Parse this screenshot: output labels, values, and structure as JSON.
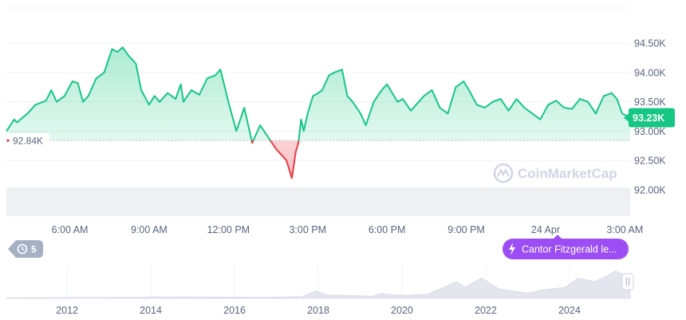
{
  "chart_data": {
    "type": "area",
    "reference_value": 92840,
    "reference_label": "92.84K",
    "current_label": "93.23K",
    "y_ticks": [
      "94.50K",
      "94.00K",
      "93.50K",
      "93.00K",
      "92.50K",
      "92.00K"
    ],
    "y_tick_values": [
      94500,
      94000,
      93500,
      93000,
      92500,
      92000
    ],
    "ylim": [
      91550,
      95100
    ],
    "x_ticks": [
      "6:00 AM",
      "9:00 AM",
      "12:00 PM",
      "3:00 PM",
      "6:00 PM",
      "9:00 PM",
      "24 Apr",
      "3:00 AM"
    ],
    "x_tick_hours": [
      6,
      9,
      12,
      15,
      18,
      21,
      24,
      27
    ],
    "xlim": [
      3.6,
      27.2
    ],
    "series": [
      {
        "x": [
          3.6,
          3.9,
          4.0,
          4.4,
          4.7,
          5.1,
          5.3,
          5.5,
          5.8,
          6.1,
          6.3,
          6.5,
          6.7,
          7.0,
          7.3,
          7.6,
          7.8,
          8.0,
          8.2,
          8.4,
          8.5,
          8.7,
          9.0,
          9.2,
          9.4,
          9.7,
          10.0,
          10.2,
          10.3,
          10.6,
          10.9,
          11.2,
          11.5,
          11.7,
          12.0,
          12.3,
          12.6,
          12.9,
          13.2,
          13.5,
          13.8,
          14.0,
          14.2,
          14.4,
          14.55,
          14.65,
          14.75,
          14.85,
          15.0,
          15.2,
          15.4,
          15.55,
          15.8,
          16.0,
          16.3,
          16.5,
          16.7,
          17.0,
          17.2,
          17.5,
          17.8,
          18.0,
          18.2,
          18.4,
          18.6,
          18.9,
          19.1,
          19.4,
          19.7,
          20.0,
          20.3,
          20.6,
          20.9,
          21.1,
          21.4,
          21.7,
          22.0,
          22.3,
          22.6,
          22.9,
          23.2,
          23.5,
          23.8,
          24.1,
          24.4,
          24.7,
          25.0,
          25.3,
          25.6,
          25.9,
          26.2,
          26.5,
          26.7,
          26.9,
          27.2
        ],
        "y": [
          93000,
          93200,
          93150,
          93300,
          93450,
          93520,
          93700,
          93500,
          93600,
          93850,
          93820,
          93500,
          93600,
          93900,
          94000,
          94400,
          94350,
          94430,
          94300,
          94200,
          94150,
          93700,
          93450,
          93600,
          93500,
          93650,
          93550,
          93800,
          93500,
          93700,
          93620,
          93900,
          93950,
          94050,
          93500,
          93000,
          93400,
          92800,
          93100,
          92900,
          92700,
          92600,
          92500,
          92200,
          92650,
          92800,
          93200,
          93000,
          93300,
          93600,
          93650,
          93700,
          93950,
          94000,
          94050,
          93600,
          93500,
          93300,
          93100,
          93500,
          93700,
          93800,
          93650,
          93500,
          93550,
          93350,
          93450,
          93600,
          93700,
          93400,
          93300,
          93750,
          93850,
          93700,
          93450,
          93400,
          93500,
          93550,
          93350,
          93550,
          93400,
          93300,
          93200,
          93450,
          93520,
          93400,
          93380,
          93550,
          93500,
          93300,
          93600,
          93650,
          93550,
          93300,
          93230
        ]
      }
    ],
    "nav_x_ticks": [
      "2012",
      "2014",
      "2016",
      "2018",
      "2020",
      "2022",
      "2024"
    ],
    "nav_x_years": [
      2012,
      2014,
      2016,
      2018,
      2020,
      2022,
      2024
    ],
    "nav_xlim": [
      2010.55,
      2025.45
    ],
    "colors": {
      "up": "#16c784",
      "down": "#ea3943",
      "badge": "#16c784",
      "news": "#9c4ef4"
    }
  },
  "watermark": "CoinMarketCap",
  "news_pill": {
    "label": "Cantor Fitzgerald le...",
    "icon": "lightning-icon"
  },
  "history_pill": {
    "count": "5",
    "icon": "history-icon"
  },
  "scroll_handle": {
    "icon": "drag-handle-icon"
  }
}
